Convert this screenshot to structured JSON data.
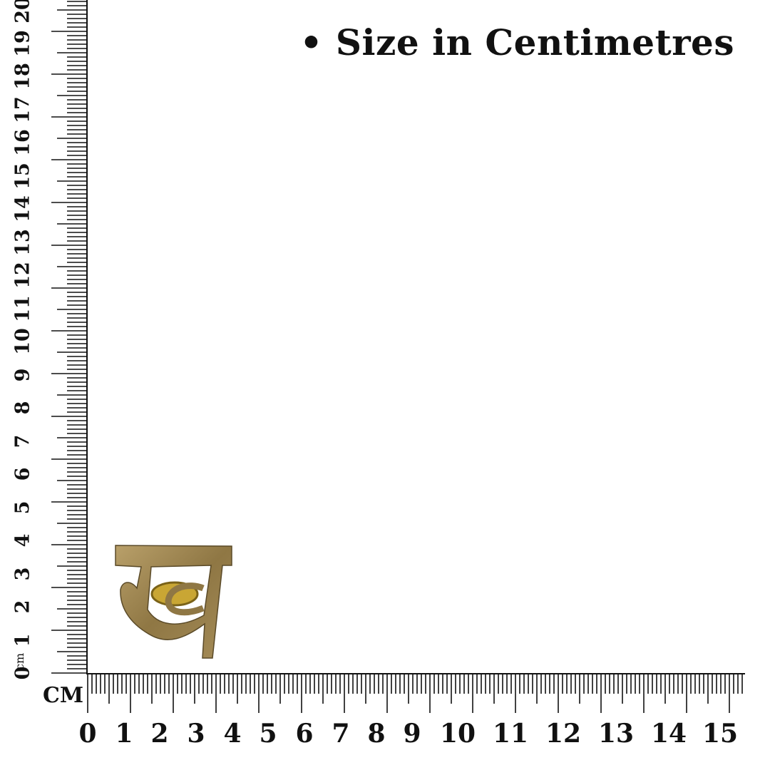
{
  "title": "• Size in Centimetres",
  "ruler": {
    "unit_label": "CM",
    "unit_label_rotated": "cm",
    "vertical_labels": [
      "0",
      "1",
      "2",
      "3",
      "4",
      "5",
      "6",
      "7",
      "8",
      "9",
      "10",
      "11",
      "12",
      "13",
      "14",
      "15",
      "16",
      "17",
      "18",
      "19",
      "20"
    ],
    "horizontal_labels": [
      "0",
      "1",
      "2",
      "3",
      "4",
      "5",
      "6",
      "7",
      "8",
      "9",
      "10",
      "11",
      "12",
      "13",
      "14",
      "15"
    ]
  },
  "colors": {
    "ruler": "#111111",
    "ring_gold": "#a89160",
    "ring_dark": "#6e5a32"
  },
  "product": {
    "icon": "gold-ring-khanda-letter"
  }
}
